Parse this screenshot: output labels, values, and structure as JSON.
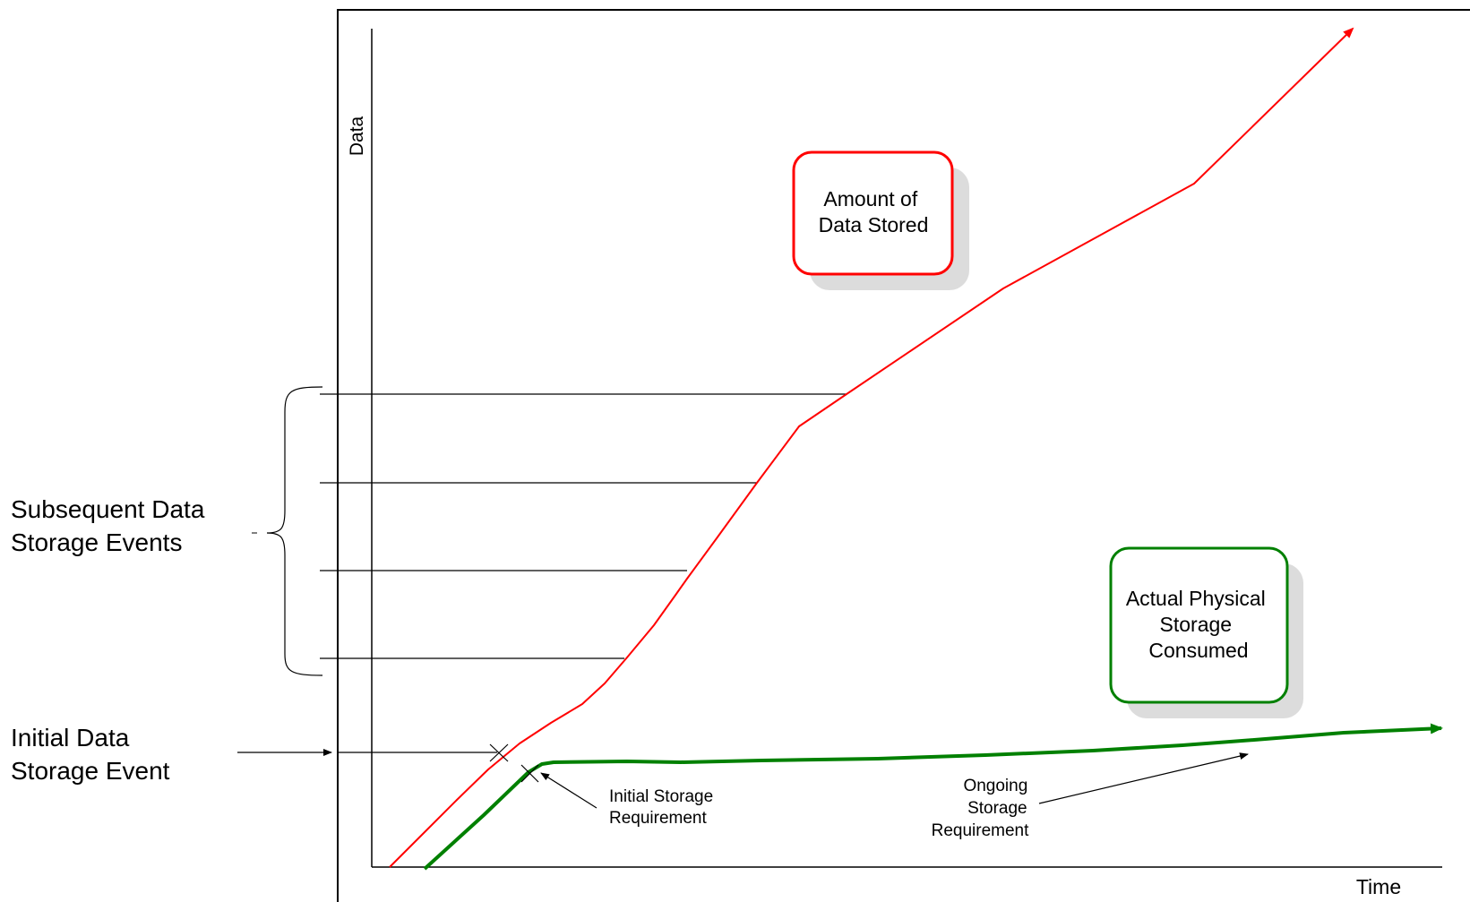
{
  "axes": {
    "y_label": "Data",
    "x_label": "Time"
  },
  "legend_boxes": {
    "stored": {
      "text": [
        "Amount of",
        "Data Stored"
      ],
      "color": "#ff0000"
    },
    "physical": {
      "text": [
        "Actual Physical",
        "Storage",
        "Consumed"
      ],
      "color": "#008000"
    }
  },
  "annotations": {
    "initial_requirement": [
      "Initial Storage",
      "Requirement"
    ],
    "ongoing_requirement": [
      "Ongoing",
      "Storage",
      "Requirement"
    ]
  },
  "side_labels": {
    "subsequent_events": "Subsequent Data\nStorage Events",
    "initial_event": "Initial Data\nStorage Event"
  },
  "colors": {
    "stored_line": "#ff0000",
    "physical_line": "#008000",
    "shadow": "#dcdcdc"
  }
}
